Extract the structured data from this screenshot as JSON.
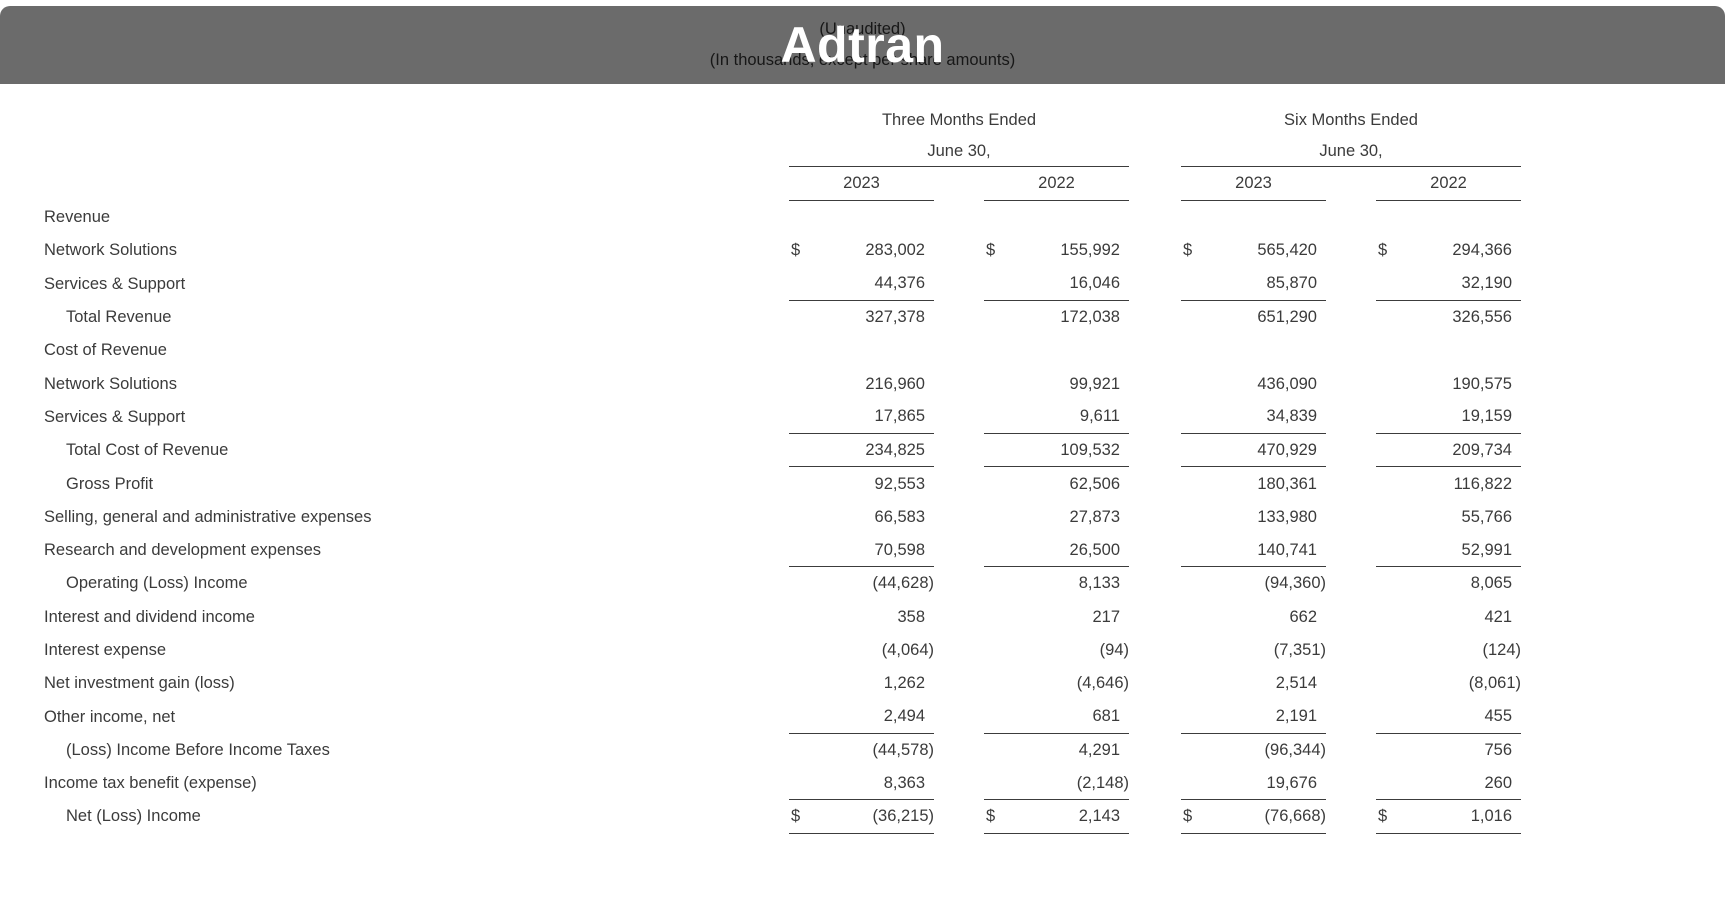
{
  "banner": {
    "line1": "(Unaudited)",
    "line2": "(In thousands, except per share amounts)",
    "logo": "Adtran"
  },
  "table": {
    "currency_symbol": "$",
    "col_groups": [
      {
        "title": "Three Months Ended",
        "subtitle": "June 30,"
      },
      {
        "title": "Six Months Ended",
        "subtitle": "June 30,"
      }
    ],
    "year_headers": [
      "2023",
      "2022",
      "2023",
      "2022"
    ],
    "rows": [
      {
        "label": "Revenue",
        "values": [
          "",
          "",
          "",
          ""
        ]
      },
      {
        "label": "Network Solutions",
        "dollar": true,
        "values": [
          "283,002",
          "155,992",
          "565,420",
          "294,366"
        ]
      },
      {
        "label": "Services & Support",
        "underline": true,
        "values": [
          "44,376",
          "16,046",
          "85,870",
          "32,190"
        ]
      },
      {
        "label": "Total Revenue",
        "indent": true,
        "values": [
          "327,378",
          "172,038",
          "651,290",
          "326,556"
        ]
      },
      {
        "label": "Cost of Revenue",
        "values": [
          "",
          "",
          "",
          ""
        ]
      },
      {
        "label": "Network Solutions",
        "values": [
          "216,960",
          "99,921",
          "436,090",
          "190,575"
        ]
      },
      {
        "label": "Services & Support",
        "underline": true,
        "values": [
          "17,865",
          "9,611",
          "34,839",
          "19,159"
        ]
      },
      {
        "label": "Total Cost of Revenue",
        "indent": true,
        "underline": true,
        "values": [
          "234,825",
          "109,532",
          "470,929",
          "209,734"
        ]
      },
      {
        "label": "Gross Profit",
        "indent": true,
        "values": [
          "92,553",
          "62,506",
          "180,361",
          "116,822"
        ]
      },
      {
        "label": "Selling, general and administrative expenses",
        "values": [
          "66,583",
          "27,873",
          "133,980",
          "55,766"
        ]
      },
      {
        "label": "Research and development expenses",
        "underline": true,
        "values": [
          "70,598",
          "26,500",
          "140,741",
          "52,991"
        ]
      },
      {
        "label": "Operating (Loss) Income",
        "indent": true,
        "values": [
          "(44,628)",
          "8,133",
          "(94,360)",
          "8,065"
        ]
      },
      {
        "label": "Interest and dividend income",
        "values": [
          "358",
          "217",
          "662",
          "421"
        ]
      },
      {
        "label": "Interest expense",
        "values": [
          "(4,064)",
          "(94)",
          "(7,351)",
          "(124)"
        ]
      },
      {
        "label": "Net investment gain (loss)",
        "values": [
          "1,262",
          "(4,646)",
          "2,514",
          "(8,061)"
        ]
      },
      {
        "label": "Other income, net",
        "underline": true,
        "values": [
          "2,494",
          "681",
          "2,191",
          "455"
        ]
      },
      {
        "label": "(Loss) Income Before Income Taxes",
        "indent": true,
        "values": [
          "(44,578)",
          "4,291",
          "(96,344)",
          "756"
        ]
      },
      {
        "label": "Income tax benefit (expense)",
        "underline": true,
        "values": [
          "8,363",
          "(2,148)",
          "19,676",
          "260"
        ]
      },
      {
        "label": "Net (Loss) Income",
        "indent": true,
        "dollar": true,
        "underline": true,
        "values": [
          "(36,215)",
          "2,143",
          "(76,668)",
          "1,016"
        ]
      }
    ]
  }
}
